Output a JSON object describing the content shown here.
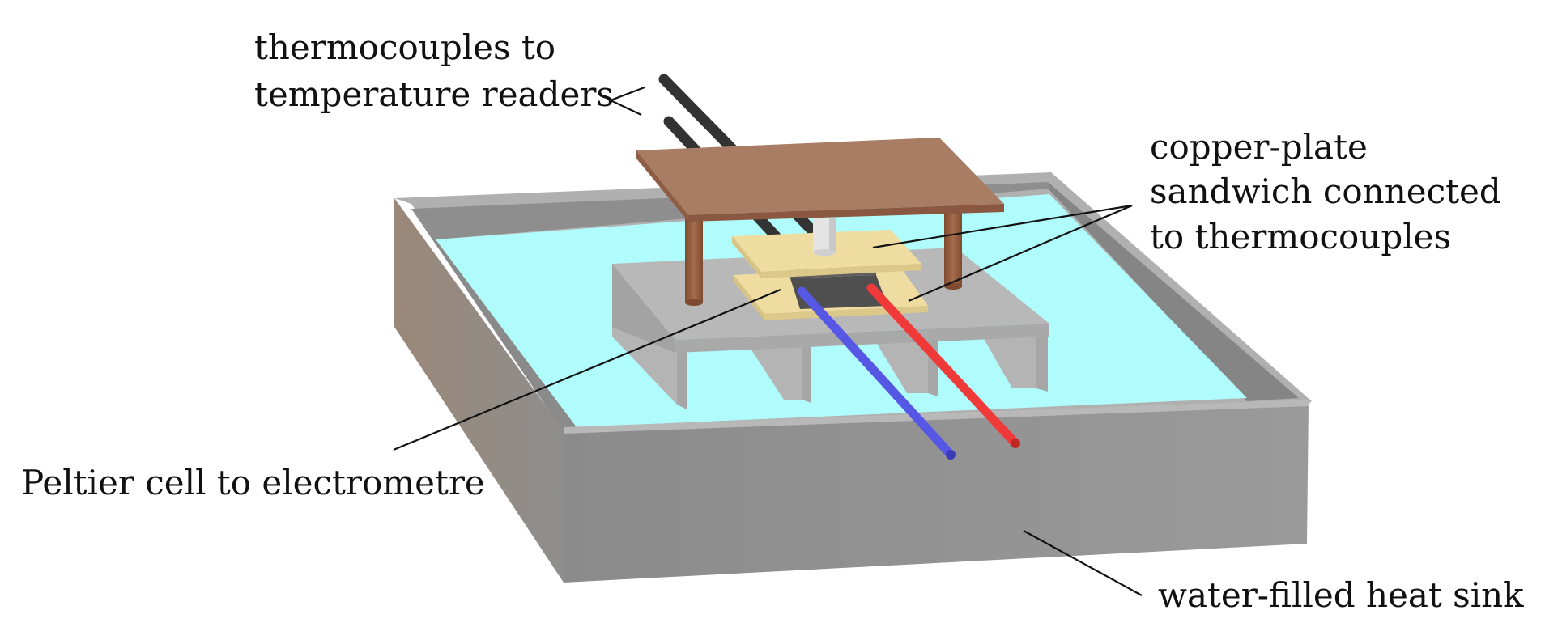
{
  "labels": {
    "thermocouples_line1": "thermocouples to",
    "thermocouples_line2": "temperature readers",
    "copper_line1": "copper-plate",
    "copper_line2": "sandwich connected",
    "copper_line3": "to thermocouples",
    "peltier": "Peltier cell to electrometre",
    "heat_sink": "water-filled heat sink"
  },
  "colors": {
    "box_outer": "#8c8c8c",
    "box_rim": "#b4b4b4",
    "box_left_side": "#9a8878",
    "water": "#b0fcfc",
    "stage": "#b8b8b8",
    "stage_dark": "#9c9c9c",
    "copper_top": "#a97c64",
    "copper_edge": "#8f5d44",
    "copper_legs": "#955c40",
    "plate": "#eedca0",
    "plate_edge": "#d7c384",
    "peltier": "#4f4f4f",
    "wire_blue": "#5757e6",
    "wire_red": "#f03a3a",
    "thermocouple": "#333333"
  }
}
